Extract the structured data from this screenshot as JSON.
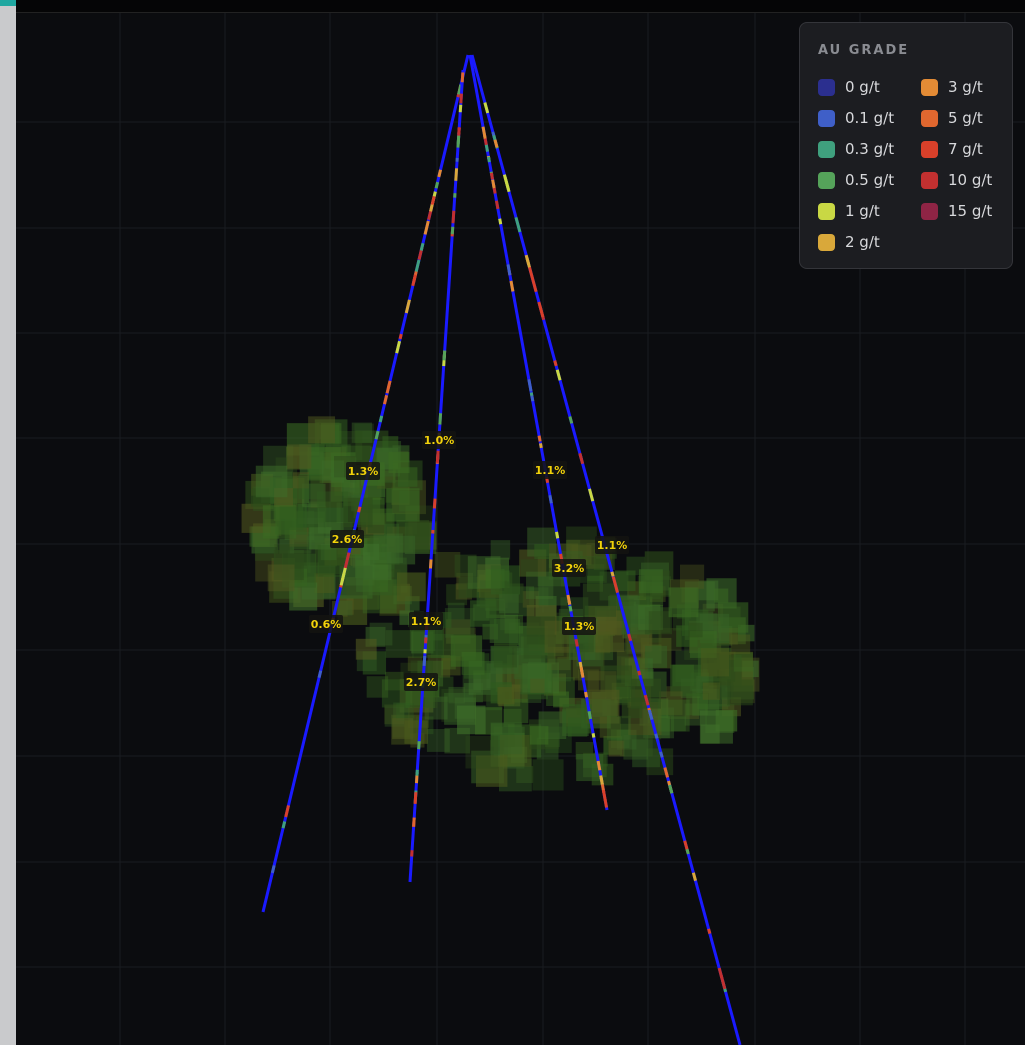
{
  "legend": {
    "title": "AU GRADE",
    "items": [
      {
        "label": "0 g/t",
        "color": "#2b2f8f"
      },
      {
        "label": "0.1 g/t",
        "color": "#3f5fc8"
      },
      {
        "label": "0.3 g/t",
        "color": "#3fa07e"
      },
      {
        "label": "0.5 g/t",
        "color": "#55a35a"
      },
      {
        "label": "1 g/t",
        "color": "#c9d844"
      },
      {
        "label": "2 g/t",
        "color": "#d9a83a"
      },
      {
        "label": "3 g/t",
        "color": "#e38b35"
      },
      {
        "label": "5 g/t",
        "color": "#e0672f"
      },
      {
        "label": "7 g/t",
        "color": "#d9402a"
      },
      {
        "label": "10 g/t",
        "color": "#c23030"
      },
      {
        "label": "15 g/t",
        "color": "#8f2445"
      }
    ]
  },
  "hole_labels": [
    "1.0%",
    "1.3%",
    "1.1%",
    "2.6%",
    "3.2%",
    "1.1%",
    "0.6%",
    "1.1%",
    "1.3%",
    "2.7%"
  ]
}
